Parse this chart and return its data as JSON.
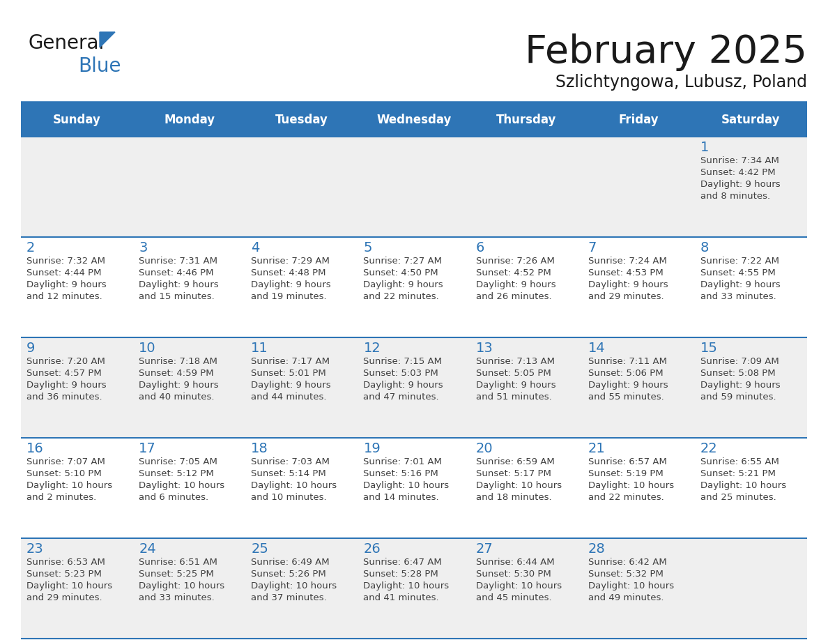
{
  "title": "February 2025",
  "subtitle": "Szlichtyngowa, Lubusz, Poland",
  "days_of_week": [
    "Sunday",
    "Monday",
    "Tuesday",
    "Wednesday",
    "Thursday",
    "Friday",
    "Saturday"
  ],
  "header_bg": "#2E75B6",
  "header_text_color": "#FFFFFF",
  "cell_bg_white": "#FFFFFF",
  "cell_bg_gray": "#EFEFEF",
  "day_number_color": "#2E75B6",
  "info_text_color": "#404040",
  "border_color": "#2E75B6",
  "title_color": "#1a1a1a",
  "subtitle_color": "#1a1a1a",
  "logo_general_color": "#1a1a1a",
  "logo_blue_color": "#2E75B6",
  "calendar_data": [
    {
      "day": 1,
      "col": 6,
      "row": 0,
      "sunrise": "7:34 AM",
      "sunset": "4:42 PM",
      "daylight": "9 hours and 8 minutes."
    },
    {
      "day": 2,
      "col": 0,
      "row": 1,
      "sunrise": "7:32 AM",
      "sunset": "4:44 PM",
      "daylight": "9 hours and 12 minutes."
    },
    {
      "day": 3,
      "col": 1,
      "row": 1,
      "sunrise": "7:31 AM",
      "sunset": "4:46 PM",
      "daylight": "9 hours and 15 minutes."
    },
    {
      "day": 4,
      "col": 2,
      "row": 1,
      "sunrise": "7:29 AM",
      "sunset": "4:48 PM",
      "daylight": "9 hours and 19 minutes."
    },
    {
      "day": 5,
      "col": 3,
      "row": 1,
      "sunrise": "7:27 AM",
      "sunset": "4:50 PM",
      "daylight": "9 hours and 22 minutes."
    },
    {
      "day": 6,
      "col": 4,
      "row": 1,
      "sunrise": "7:26 AM",
      "sunset": "4:52 PM",
      "daylight": "9 hours and 26 minutes."
    },
    {
      "day": 7,
      "col": 5,
      "row": 1,
      "sunrise": "7:24 AM",
      "sunset": "4:53 PM",
      "daylight": "9 hours and 29 minutes."
    },
    {
      "day": 8,
      "col": 6,
      "row": 1,
      "sunrise": "7:22 AM",
      "sunset": "4:55 PM",
      "daylight": "9 hours and 33 minutes."
    },
    {
      "day": 9,
      "col": 0,
      "row": 2,
      "sunrise": "7:20 AM",
      "sunset": "4:57 PM",
      "daylight": "9 hours and 36 minutes."
    },
    {
      "day": 10,
      "col": 1,
      "row": 2,
      "sunrise": "7:18 AM",
      "sunset": "4:59 PM",
      "daylight": "9 hours and 40 minutes."
    },
    {
      "day": 11,
      "col": 2,
      "row": 2,
      "sunrise": "7:17 AM",
      "sunset": "5:01 PM",
      "daylight": "9 hours and 44 minutes."
    },
    {
      "day": 12,
      "col": 3,
      "row": 2,
      "sunrise": "7:15 AM",
      "sunset": "5:03 PM",
      "daylight": "9 hours and 47 minutes."
    },
    {
      "day": 13,
      "col": 4,
      "row": 2,
      "sunrise": "7:13 AM",
      "sunset": "5:05 PM",
      "daylight": "9 hours and 51 minutes."
    },
    {
      "day": 14,
      "col": 5,
      "row": 2,
      "sunrise": "7:11 AM",
      "sunset": "5:06 PM",
      "daylight": "9 hours and 55 minutes."
    },
    {
      "day": 15,
      "col": 6,
      "row": 2,
      "sunrise": "7:09 AM",
      "sunset": "5:08 PM",
      "daylight": "9 hours and 59 minutes."
    },
    {
      "day": 16,
      "col": 0,
      "row": 3,
      "sunrise": "7:07 AM",
      "sunset": "5:10 PM",
      "daylight": "10 hours and 2 minutes."
    },
    {
      "day": 17,
      "col": 1,
      "row": 3,
      "sunrise": "7:05 AM",
      "sunset": "5:12 PM",
      "daylight": "10 hours and 6 minutes."
    },
    {
      "day": 18,
      "col": 2,
      "row": 3,
      "sunrise": "7:03 AM",
      "sunset": "5:14 PM",
      "daylight": "10 hours and 10 minutes."
    },
    {
      "day": 19,
      "col": 3,
      "row": 3,
      "sunrise": "7:01 AM",
      "sunset": "5:16 PM",
      "daylight": "10 hours and 14 minutes."
    },
    {
      "day": 20,
      "col": 4,
      "row": 3,
      "sunrise": "6:59 AM",
      "sunset": "5:17 PM",
      "daylight": "10 hours and 18 minutes."
    },
    {
      "day": 21,
      "col": 5,
      "row": 3,
      "sunrise": "6:57 AM",
      "sunset": "5:19 PM",
      "daylight": "10 hours and 22 minutes."
    },
    {
      "day": 22,
      "col": 6,
      "row": 3,
      "sunrise": "6:55 AM",
      "sunset": "5:21 PM",
      "daylight": "10 hours and 25 minutes."
    },
    {
      "day": 23,
      "col": 0,
      "row": 4,
      "sunrise": "6:53 AM",
      "sunset": "5:23 PM",
      "daylight": "10 hours and 29 minutes."
    },
    {
      "day": 24,
      "col": 1,
      "row": 4,
      "sunrise": "6:51 AM",
      "sunset": "5:25 PM",
      "daylight": "10 hours and 33 minutes."
    },
    {
      "day": 25,
      "col": 2,
      "row": 4,
      "sunrise": "6:49 AM",
      "sunset": "5:26 PM",
      "daylight": "10 hours and 37 minutes."
    },
    {
      "day": 26,
      "col": 3,
      "row": 4,
      "sunrise": "6:47 AM",
      "sunset": "5:28 PM",
      "daylight": "10 hours and 41 minutes."
    },
    {
      "day": 27,
      "col": 4,
      "row": 4,
      "sunrise": "6:44 AM",
      "sunset": "5:30 PM",
      "daylight": "10 hours and 45 minutes."
    },
    {
      "day": 28,
      "col": 5,
      "row": 4,
      "sunrise": "6:42 AM",
      "sunset": "5:32 PM",
      "daylight": "10 hours and 49 minutes."
    }
  ]
}
